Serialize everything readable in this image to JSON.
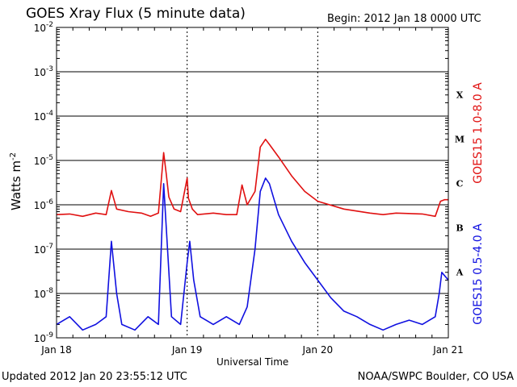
{
  "header": {
    "title": "GOES Xray Flux (5 minute data)",
    "begin": "Begin:  2012 Jan 18 0000 UTC"
  },
  "footer": {
    "updated": "Updated 2012 Jan 20 23:55:12 UTC",
    "credit": "NOAA/SWPC Boulder, CO USA"
  },
  "colors": {
    "long_channel": "#e01010",
    "short_channel": "#1010e0",
    "grid": "#000000"
  },
  "chart_data": {
    "type": "line",
    "xlabel": "Universal Time",
    "ylabel": "Watts m",
    "ylabel_superscript": "-2",
    "y_scale": "log",
    "ylim": [
      1e-09,
      0.01
    ],
    "xlim": [
      "2012-01-18",
      "2012-01-21"
    ],
    "x_ticks": [
      "Jan 18",
      "Jan 19",
      "Jan 20",
      "Jan 21"
    ],
    "y_ticks": [
      {
        "base": "10",
        "exp": "-9"
      },
      {
        "base": "10",
        "exp": "-8"
      },
      {
        "base": "10",
        "exp": "-7"
      },
      {
        "base": "10",
        "exp": "-6"
      },
      {
        "base": "10",
        "exp": "-5"
      },
      {
        "base": "10",
        "exp": "-4"
      },
      {
        "base": "10",
        "exp": "-3"
      },
      {
        "base": "10",
        "exp": "-2"
      }
    ],
    "flare_classes": [
      {
        "label": "A",
        "level": 1e-08
      },
      {
        "label": "B",
        "level": 1e-07
      },
      {
        "label": "C",
        "level": 1e-06
      },
      {
        "label": "M",
        "level": 1e-05
      },
      {
        "label": "X",
        "level": 0.0001
      }
    ],
    "series": [
      {
        "name": "GOES15 1.0-8.0 A",
        "color": "#e01010",
        "x_days": [
          0.0,
          0.1,
          0.2,
          0.3,
          0.38,
          0.42,
          0.46,
          0.55,
          0.65,
          0.72,
          0.78,
          0.82,
          0.84,
          0.86,
          0.9,
          0.95,
          1.0,
          1.01,
          1.04,
          1.08,
          1.2,
          1.3,
          1.38,
          1.42,
          1.46,
          1.52,
          1.56,
          1.6,
          1.63,
          1.7,
          1.8,
          1.9,
          2.0,
          2.2,
          2.4,
          2.5,
          2.6,
          2.8,
          2.9,
          2.94,
          2.97,
          3.0
        ],
        "values": [
          6e-07,
          6.2e-07,
          5.5e-07,
          6.5e-07,
          6e-07,
          2.1e-06,
          8e-07,
          7e-07,
          6.5e-07,
          5.5e-07,
          6.5e-07,
          1.5e-05,
          5e-06,
          1.5e-06,
          8e-07,
          7e-07,
          4e-06,
          1.4e-06,
          8e-07,
          6e-07,
          6.5e-07,
          6e-07,
          6e-07,
          2.8e-06,
          1e-06,
          2e-06,
          2e-05,
          3e-05,
          2.3e-05,
          1.2e-05,
          4.5e-06,
          2e-06,
          1.2e-06,
          8e-07,
          6.5e-07,
          6e-07,
          6.5e-07,
          6.2e-07,
          5.5e-07,
          1.2e-06,
          1.3e-06,
          1.3e-06
        ]
      },
      {
        "name": "GOES15 0.5-4.0 A",
        "color": "#1010e0",
        "x_days": [
          0.0,
          0.1,
          0.2,
          0.3,
          0.38,
          0.42,
          0.46,
          0.5,
          0.6,
          0.7,
          0.78,
          0.82,
          0.85,
          0.88,
          0.95,
          1.0,
          1.02,
          1.05,
          1.1,
          1.2,
          1.3,
          1.4,
          1.46,
          1.52,
          1.56,
          1.6,
          1.63,
          1.7,
          1.8,
          1.9,
          2.0,
          2.1,
          2.2,
          2.3,
          2.4,
          2.5,
          2.6,
          2.7,
          2.8,
          2.9,
          2.93,
          2.95,
          3.0
        ],
        "values": [
          2e-09,
          3e-09,
          1.5e-09,
          2e-09,
          3e-09,
          1.5e-07,
          1e-08,
          2e-09,
          1.5e-09,
          3e-09,
          2e-09,
          3e-06,
          1e-07,
          3e-09,
          2e-09,
          5e-08,
          1.5e-07,
          2e-08,
          3e-09,
          2e-09,
          3e-09,
          2e-09,
          5e-09,
          1e-07,
          2e-06,
          4e-06,
          3e-06,
          6e-07,
          1.5e-07,
          5e-08,
          2e-08,
          8e-09,
          4e-09,
          3e-09,
          2e-09,
          1.5e-09,
          2e-09,
          2.5e-09,
          2e-09,
          3e-09,
          1e-08,
          3e-08,
          2e-08
        ]
      }
    ]
  }
}
